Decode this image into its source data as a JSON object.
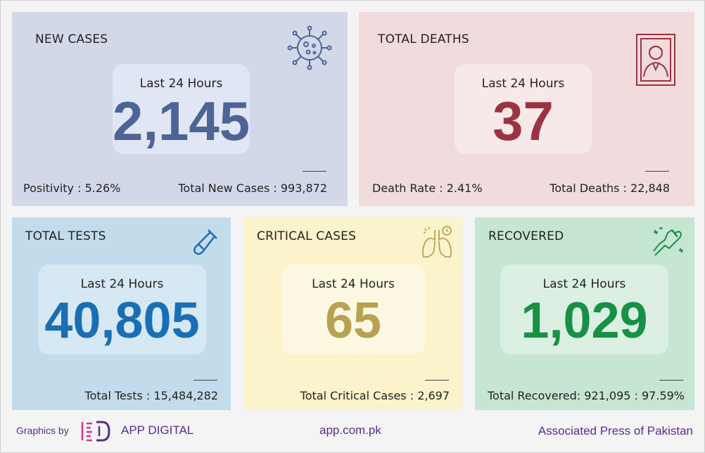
{
  "cards": {
    "new_cases": {
      "title": "NEW CASES",
      "inner_label": "Last 24 Hours",
      "value": "2,145",
      "left_foot": "Positivity : 5.26%",
      "right_foot": "Total New Cases : 993,872",
      "icon": "virus-icon",
      "color": "#4c6596"
    },
    "total_deaths": {
      "title": "TOTAL DEATHS",
      "inner_label": "Last 24 Hours",
      "value": "37",
      "left_foot": "Death Rate : 2.41%",
      "right_foot": "Total Deaths : 22,848",
      "icon": "portrait-frame-icon",
      "color": "#9b3442"
    },
    "total_tests": {
      "title": "TOTAL TESTS",
      "inner_label": "Last 24 Hours",
      "value": "40,805",
      "foot": "Total Tests : 15,484,282",
      "icon": "test-tube-icon",
      "color": "#1a6fb4"
    },
    "critical_cases": {
      "title": "CRITICAL CASES",
      "inner_label": "Last 24 Hours",
      "value": "65",
      "foot": "Total Critical Cases : 2,697",
      "icon": "lungs-icon",
      "color": "#b8a252"
    },
    "recovered": {
      "title": "RECOVERED",
      "inner_label": "Last 24 Hours",
      "value": "1,029",
      "foot": "Total Recovered: 921,095 : 97.59%",
      "icon": "fist-bump-icon",
      "color": "#179145"
    }
  },
  "footer": {
    "graphics_by": "Graphics by",
    "brand": "APP DIGITAL",
    "site": "app.com.pk",
    "agency": "Associated Press of Pakistan",
    "color": "#5b2c8c"
  }
}
